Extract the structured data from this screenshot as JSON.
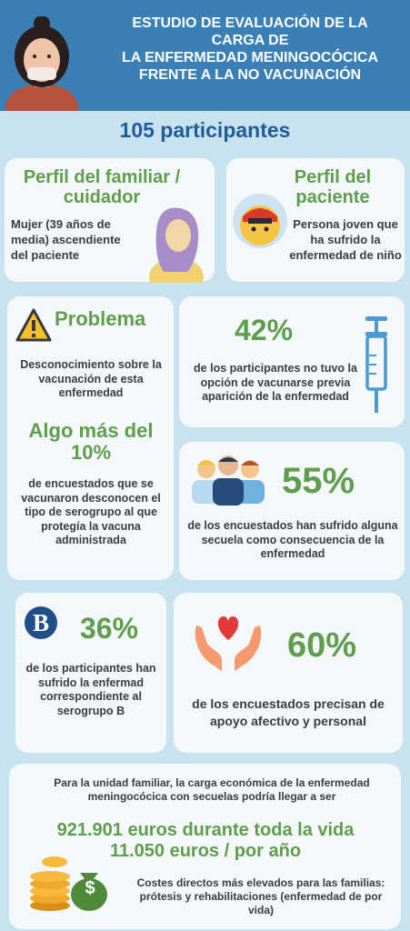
{
  "header": {
    "title_lines": [
      "ESTUDIO DE EVALUACIÓN DE LA",
      "CARGA DE",
      "LA ENFERMEDAD MENINGOCÓCICA",
      "FRENTE A LA NO VACUNACIÓN"
    ]
  },
  "participants": "105 participantes",
  "family_profile": {
    "title": "Perfil del familiar / cuidador",
    "text": "Mujer (39 años de media) ascendiente del paciente"
  },
  "patient_profile": {
    "title": "Perfil del paciente",
    "text": "Persona joven que ha sufrido la enfermedad de niño"
  },
  "problem": {
    "title": "Problema",
    "text": "Desconocimiento sobre la vacunación de esta enfermedad",
    "highlight": "Algo más del 10%",
    "detail": "de encuestados que se vacunaron desconocen el tipo de serogrupo al que protegía la vacuna administrada"
  },
  "stat_42": {
    "value": "42%",
    "text": "de los participantes no tuvo la opción de vacunarse previa aparición de la enfermedad"
  },
  "stat_55": {
    "value": "55%",
    "text": "de los encuestados han sufrido alguna secuela como consecuencia de la enfermedad"
  },
  "stat_36": {
    "value": "36%",
    "text": "de los participantes han sufrido la enfermad correspondiente al serogrupo B",
    "badge": "B"
  },
  "stat_60": {
    "value": "60%",
    "text": "de los encuestados precisan de apoyo afectivo y personal"
  },
  "economic": {
    "intro": "Para la unidad familiar, la carga económica de la enfermedad meningocócica con secuelas podría llegar a ser",
    "lifetime": "921.901 euros durante toda la vida",
    "yearly": "11.050 euros / por año",
    "note": "Costes directos más elevados para las familias: prótesis y rehabilitaciones (enfermedad de por vida)",
    "dollar": "$"
  },
  "colors": {
    "header_bg": "#3a7fb5",
    "page_bg": "#c9e2ef",
    "accent_green": "#5f9e4c",
    "accent_blue": "#1f5d99"
  }
}
